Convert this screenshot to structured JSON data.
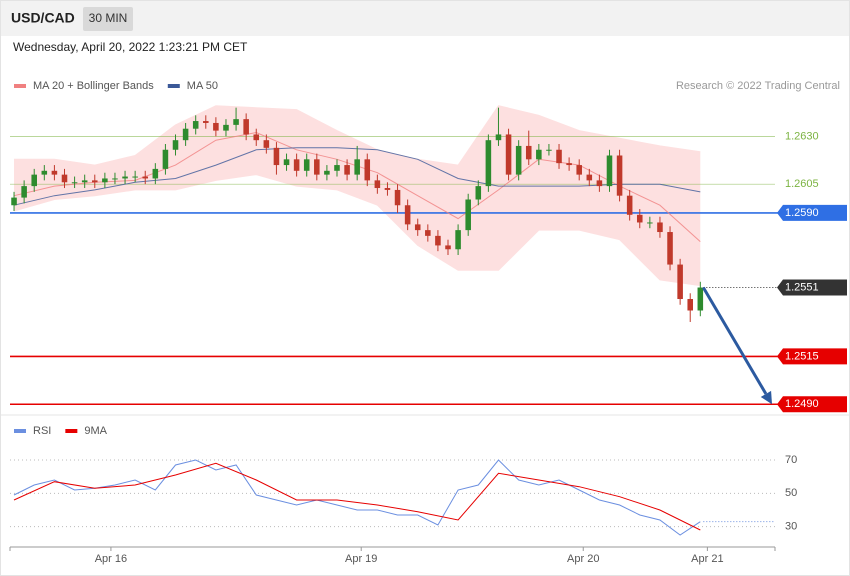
{
  "header": {
    "symbol": "USD/CAD",
    "timeframe": "30 MIN",
    "datetime": "Wednesday, April 20, 2022 1:23:21 PM CET"
  },
  "chart_data": [
    {
      "type": "candlestick",
      "source": "Research © 2022 Trading Central",
      "up_color": "#2e8b2e",
      "down_color": "#c0392b",
      "xlim": [
        -0.4,
        75.4
      ],
      "ylim": [
        1.2487,
        1.2649
      ],
      "open": [
        1.2594,
        1.2598,
        1.2604,
        1.261,
        1.2612,
        1.261,
        1.2606,
        1.2606,
        1.2607,
        1.2606,
        1.2608,
        1.2608,
        1.2609,
        1.2609,
        1.2608,
        1.2613,
        1.2623,
        1.2628,
        1.2634,
        1.2638,
        1.2637,
        1.2633,
        1.2636,
        1.2639,
        1.2631,
        1.2628,
        1.2624,
        1.2615,
        1.2618,
        1.2612,
        1.2618,
        1.261,
        1.2612,
        1.2615,
        1.261,
        1.2618,
        1.2607,
        1.2603,
        1.2602,
        1.2594,
        1.2584,
        1.2581,
        1.2578,
        1.2573,
        1.2571,
        1.2581,
        1.2597,
        1.2604,
        1.2628,
        1.2631,
        1.261,
        1.2625,
        1.2618,
        1.2623,
        1.2623,
        1.2616,
        1.2615,
        1.261,
        1.2607,
        1.2604,
        1.262,
        1.2599,
        1.2589,
        1.2585,
        1.2585,
        1.258,
        1.2563,
        1.2545,
        1.2539
      ],
      "high": [
        1.2601,
        1.2607,
        1.2613,
        1.2615,
        1.2615,
        1.2613,
        1.2609,
        1.261,
        1.261,
        1.2611,
        1.2611,
        1.2612,
        1.2612,
        1.2612,
        1.2616,
        1.2626,
        1.2631,
        1.2637,
        1.2641,
        1.2641,
        1.264,
        1.2639,
        1.2645,
        1.2642,
        1.2634,
        1.2631,
        1.2627,
        1.2621,
        1.2621,
        1.2621,
        1.2621,
        1.2615,
        1.2618,
        1.2618,
        1.2625,
        1.2621,
        1.261,
        1.2606,
        1.2605,
        1.2597,
        1.2587,
        1.2584,
        1.2581,
        1.2576,
        1.2584,
        1.26,
        1.2607,
        1.2631,
        1.2645,
        1.2634,
        1.2628,
        1.2633,
        1.2626,
        1.2626,
        1.2626,
        1.2619,
        1.2618,
        1.2613,
        1.261,
        1.2623,
        1.2623,
        1.2602,
        1.2592,
        1.2588,
        1.2588,
        1.2583,
        1.2566,
        1.2548,
        1.2554
      ],
      "low": [
        1.2591,
        1.2595,
        1.2601,
        1.2607,
        1.2607,
        1.2603,
        1.2603,
        1.2603,
        1.2603,
        1.2603,
        1.2605,
        1.2605,
        1.2606,
        1.2605,
        1.2605,
        1.261,
        1.262,
        1.2625,
        1.2631,
        1.2634,
        1.263,
        1.263,
        1.2633,
        1.2628,
        1.2625,
        1.2621,
        1.261,
        1.2612,
        1.2609,
        1.2609,
        1.2607,
        1.2607,
        1.2609,
        1.2607,
        1.2607,
        1.2604,
        1.26,
        1.2599,
        1.259,
        1.2581,
        1.2578,
        1.2575,
        1.257,
        1.2568,
        1.2568,
        1.2578,
        1.2594,
        1.2601,
        1.2625,
        1.2607,
        1.2607,
        1.2615,
        1.2615,
        1.262,
        1.2613,
        1.2612,
        1.2607,
        1.2604,
        1.2601,
        1.2601,
        1.2596,
        1.2586,
        1.2582,
        1.2582,
        1.2577,
        1.256,
        1.2542,
        1.2533,
        1.2536
      ],
      "close": [
        1.2598,
        1.2604,
        1.261,
        1.2612,
        1.261,
        1.2606,
        1.2606,
        1.2607,
        1.2606,
        1.2608,
        1.2608,
        1.2609,
        1.2609,
        1.2608,
        1.2613,
        1.2623,
        1.2628,
        1.2634,
        1.2638,
        1.2637,
        1.2633,
        1.2636,
        1.2639,
        1.2631,
        1.2628,
        1.2624,
        1.2615,
        1.2618,
        1.2612,
        1.2618,
        1.261,
        1.2612,
        1.2615,
        1.261,
        1.2618,
        1.2607,
        1.2603,
        1.2602,
        1.2594,
        1.2584,
        1.2581,
        1.2578,
        1.2573,
        1.2571,
        1.2581,
        1.2597,
        1.2604,
        1.2628,
        1.2631,
        1.261,
        1.2625,
        1.2618,
        1.2623,
        1.2623,
        1.2616,
        1.2615,
        1.261,
        1.2607,
        1.2604,
        1.262,
        1.2599,
        1.2589,
        1.2585,
        1.2585,
        1.258,
        1.2563,
        1.2545,
        1.2539,
        1.2551
      ],
      "series": [
        {
          "name": "MA 20 + Bollinger Bands",
          "color": "#f08080",
          "band_color": "#fde0e0",
          "x": [
            0,
            4,
            8,
            12,
            16,
            20,
            24,
            28,
            32,
            36,
            40,
            44,
            48,
            52,
            56,
            60,
            64,
            68
          ],
          "values": [
            1.2599,
            1.2604,
            1.2606,
            1.2607,
            1.2615,
            1.2628,
            1.2632,
            1.2623,
            1.2618,
            1.2611,
            1.2599,
            1.2587,
            1.2602,
            1.2618,
            1.2615,
            1.2604,
            1.2594,
            1.2575
          ],
          "upper": [
            1.2618,
            1.2618,
            1.2615,
            1.262,
            1.2636,
            1.2646,
            1.2645,
            1.2644,
            1.2633,
            1.2623,
            1.2618,
            1.2615,
            1.2646,
            1.2641,
            1.2633,
            1.2629,
            1.2625,
            1.2622
          ],
          "lower": [
            1.2591,
            1.2597,
            1.2599,
            1.2602,
            1.2602,
            1.2607,
            1.261,
            1.2604,
            1.2602,
            1.2594,
            1.2573,
            1.256,
            1.256,
            1.2581,
            1.2581,
            1.2576,
            1.2555,
            1.2552
          ]
        },
        {
          "name": "MA 50",
          "color": "#3b5998",
          "x": [
            0,
            4,
            8,
            12,
            16,
            20,
            24,
            28,
            32,
            36,
            40,
            44,
            48,
            52,
            56,
            60,
            64,
            68
          ],
          "values": [
            1.2594,
            1.2599,
            1.2602,
            1.2606,
            1.2608,
            1.2615,
            1.2623,
            1.2624,
            1.2624,
            1.2623,
            1.2618,
            1.2608,
            1.2604,
            1.2604,
            1.2604,
            1.2605,
            1.2605,
            1.2601
          ]
        }
      ],
      "levels": [
        {
          "value": 1.263,
          "label": "1.2630",
          "color": "#7cb342",
          "box": false,
          "dotted": false
        },
        {
          "value": 1.2605,
          "label": "1.2605",
          "color": "#7cb342",
          "box": false,
          "dotted": false
        },
        {
          "value": 1.259,
          "label": "1.2590",
          "color": "#2f6fe4",
          "box": true,
          "dotted": false
        },
        {
          "value": 1.2551,
          "label": "1.2551",
          "color": "#333333",
          "box": true,
          "dotted": true
        },
        {
          "value": 1.2515,
          "label": "1.2515",
          "color": "#e60000",
          "box": true,
          "dotted": false
        },
        {
          "value": 1.249,
          "label": "1.2490",
          "color": "#e60000",
          "box": true,
          "dotted": false
        }
      ],
      "projection": {
        "from": 1.2551,
        "to": 1.249,
        "color": "#2c5aa0"
      }
    },
    {
      "type": "line",
      "xlim": [
        -0.4,
        75.4
      ],
      "ylim": [
        19,
        82
      ],
      "yticks": [
        30,
        50,
        70
      ],
      "grid": true,
      "xticks": [
        {
          "value": 9.6,
          "label": "Apr 16"
        },
        {
          "value": 34.4,
          "label": "Apr 19"
        },
        {
          "value": 56.4,
          "label": "Apr 20"
        },
        {
          "value": 68.7,
          "label": "Apr 21"
        }
      ],
      "series": [
        {
          "name": "RSI",
          "color": "#6b8fe0",
          "x": [
            0,
            2,
            4,
            6,
            8,
            10,
            12,
            14,
            16,
            18,
            20,
            22,
            24,
            26,
            28,
            30,
            32,
            34,
            36,
            38,
            40,
            42,
            44,
            46,
            48,
            50,
            52,
            54,
            56,
            58,
            60,
            62,
            64,
            66,
            68
          ],
          "values": [
            49,
            55,
            58,
            52,
            53,
            55,
            58,
            52,
            67,
            70,
            64,
            67,
            49,
            46,
            43,
            46,
            43,
            40,
            40,
            37,
            37,
            31,
            52,
            55,
            70,
            58,
            55,
            58,
            52,
            46,
            43,
            37,
            34,
            25,
            33
          ]
        },
        {
          "name": "9MA",
          "color": "#e60000",
          "x": [
            0,
            4,
            8,
            12,
            16,
            20,
            24,
            28,
            32,
            36,
            40,
            44,
            48,
            52,
            56,
            60,
            64,
            68
          ],
          "values": [
            46,
            57,
            53,
            55,
            61,
            68,
            58,
            46,
            46,
            43,
            39,
            34,
            62,
            58,
            54,
            48,
            40,
            28
          ]
        }
      ]
    }
  ]
}
